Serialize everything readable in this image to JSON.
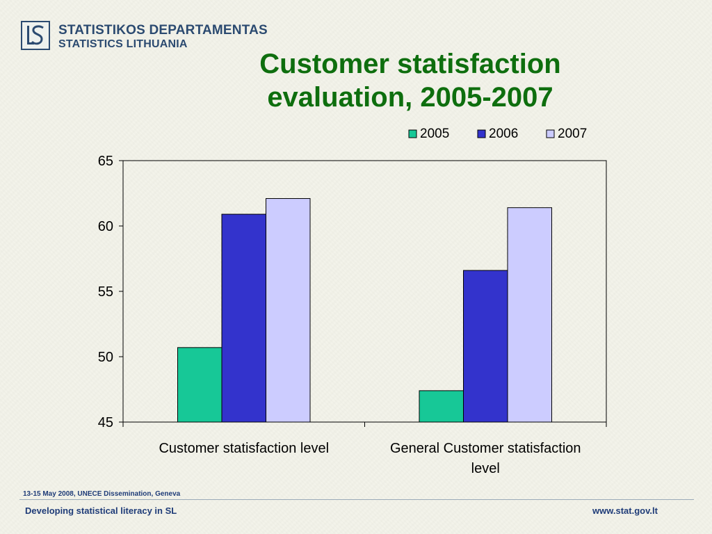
{
  "logo": {
    "line1": "STATISTIKOS DEPARTAMENTAS",
    "line2": "STATISTICS LITHUANIA",
    "icon": "ls-logo-icon"
  },
  "title": {
    "line1": "Customer statisfaction",
    "line2": "evaluation, 2005-2007"
  },
  "chart_data": {
    "type": "bar",
    "title": "Customer statisfaction evaluation, 2005-2007",
    "categories": [
      "Customer statisfaction level",
      "General Customer statisfaction level"
    ],
    "series": [
      {
        "name": "2005",
        "values": [
          50.7,
          47.4
        ],
        "color": "#17c897"
      },
      {
        "name": "2006",
        "values": [
          60.9,
          56.6
        ],
        "color": "#3333cc"
      },
      {
        "name": "2007",
        "values": [
          62.1,
          61.4
        ],
        "color": "#ccccff"
      }
    ],
    "ylim": [
      45,
      65
    ],
    "yticks": [
      45,
      50,
      55,
      60,
      65
    ],
    "xlabel": "",
    "ylabel": "",
    "grid": false,
    "legend": "top-right"
  },
  "footer": {
    "date": "13-15 May 2008, UNECE Dissemination, Geneva",
    "left": "Developing statistical literacy in SL",
    "right": "www.stat.gov.lt"
  }
}
